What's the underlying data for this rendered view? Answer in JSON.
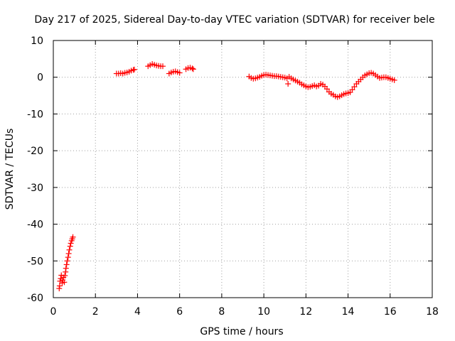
{
  "chart_data": {
    "type": "scatter",
    "title": "Day 217 of 2025, Sidereal Day-to-day VTEC variation (SDTVAR) for receiver bele",
    "xlabel": "GPS time / hours",
    "ylabel": "SDTVAR / TECUs",
    "xlim": [
      0,
      18
    ],
    "ylim": [
      -60,
      10
    ],
    "xticks": [
      "0",
      "2",
      "4",
      "6",
      "8",
      "10",
      "12",
      "14",
      "16",
      "18"
    ],
    "yticks": [
      "10",
      "0",
      "-10",
      "-20",
      "-30",
      "-40",
      "-50",
      "-60"
    ],
    "grid": true,
    "marker": "+",
    "color": "#ff0000",
    "series": [
      {
        "name": "SDTVAR",
        "points": [
          [
            0.28,
            -57.5
          ],
          [
            0.3,
            -56.8
          ],
          [
            0.32,
            -55.5
          ],
          [
            0.35,
            -54.8
          ],
          [
            0.38,
            -53.9
          ],
          [
            0.42,
            -56.0
          ],
          [
            0.45,
            -55.2
          ],
          [
            0.48,
            -54.5
          ],
          [
            0.52,
            -55.8
          ],
          [
            0.55,
            -54.0
          ],
          [
            0.58,
            -53.0
          ],
          [
            0.6,
            -52.0
          ],
          [
            0.63,
            -51.0
          ],
          [
            0.66,
            -50.0
          ],
          [
            0.7,
            -49.0
          ],
          [
            0.73,
            -48.0
          ],
          [
            0.76,
            -47.0
          ],
          [
            0.8,
            -46.0
          ],
          [
            0.83,
            -45.2
          ],
          [
            0.87,
            -44.5
          ],
          [
            0.9,
            -44.0
          ],
          [
            0.93,
            -43.5
          ],
          [
            3.0,
            1.0
          ],
          [
            3.1,
            1.0
          ],
          [
            3.2,
            1.1
          ],
          [
            3.3,
            1.0
          ],
          [
            3.4,
            1.2
          ],
          [
            3.5,
            1.3
          ],
          [
            3.6,
            1.5
          ],
          [
            3.7,
            1.8
          ],
          [
            3.8,
            2.0
          ],
          [
            3.85,
            2.1
          ],
          [
            4.5,
            3.0
          ],
          [
            4.6,
            3.3
          ],
          [
            4.7,
            3.6
          ],
          [
            4.8,
            3.4
          ],
          [
            4.9,
            3.2
          ],
          [
            5.0,
            3.1
          ],
          [
            5.1,
            3.0
          ],
          [
            5.2,
            3.0
          ],
          [
            5.5,
            1.0
          ],
          [
            5.6,
            1.3
          ],
          [
            5.7,
            1.5
          ],
          [
            5.8,
            1.6
          ],
          [
            5.9,
            1.4
          ],
          [
            6.0,
            1.2
          ],
          [
            6.3,
            2.2
          ],
          [
            6.4,
            2.5
          ],
          [
            6.5,
            2.6
          ],
          [
            6.6,
            2.4
          ],
          [
            6.65,
            2.2
          ],
          [
            9.3,
            0.2
          ],
          [
            9.4,
            -0.2
          ],
          [
            9.5,
            -0.4
          ],
          [
            9.6,
            -0.3
          ],
          [
            9.7,
            -0.1
          ],
          [
            9.8,
            0.1
          ],
          [
            9.9,
            0.4
          ],
          [
            10.0,
            0.6
          ],
          [
            10.1,
            0.7
          ],
          [
            10.2,
            0.6
          ],
          [
            10.3,
            0.5
          ],
          [
            10.4,
            0.4
          ],
          [
            10.5,
            0.3
          ],
          [
            10.6,
            0.3
          ],
          [
            10.7,
            0.2
          ],
          [
            10.8,
            0.1
          ],
          [
            10.9,
            0.0
          ],
          [
            11.0,
            -0.1
          ],
          [
            11.1,
            -0.3
          ],
          [
            11.15,
            -1.8
          ],
          [
            11.2,
            0.1
          ],
          [
            11.3,
            -0.3
          ],
          [
            11.4,
            -0.6
          ],
          [
            11.5,
            -0.9
          ],
          [
            11.6,
            -1.2
          ],
          [
            11.7,
            -1.5
          ],
          [
            11.8,
            -1.9
          ],
          [
            11.9,
            -2.2
          ],
          [
            12.0,
            -2.5
          ],
          [
            12.1,
            -2.7
          ],
          [
            12.2,
            -2.6
          ],
          [
            12.3,
            -2.4
          ],
          [
            12.4,
            -2.2
          ],
          [
            12.5,
            -2.5
          ],
          [
            12.6,
            -2.3
          ],
          [
            12.7,
            -1.8
          ],
          [
            12.8,
            -2.0
          ],
          [
            12.9,
            -2.5
          ],
          [
            13.0,
            -3.2
          ],
          [
            13.1,
            -4.0
          ],
          [
            13.2,
            -4.5
          ],
          [
            13.3,
            -4.8
          ],
          [
            13.4,
            -5.2
          ],
          [
            13.5,
            -5.4
          ],
          [
            13.6,
            -5.2
          ],
          [
            13.7,
            -4.9
          ],
          [
            13.8,
            -4.6
          ],
          [
            13.9,
            -4.4
          ],
          [
            14.0,
            -4.3
          ],
          [
            14.1,
            -4.1
          ],
          [
            14.2,
            -3.4
          ],
          [
            14.3,
            -2.6
          ],
          [
            14.4,
            -1.8
          ],
          [
            14.5,
            -1.2
          ],
          [
            14.6,
            -0.6
          ],
          [
            14.7,
            0.0
          ],
          [
            14.8,
            0.5
          ],
          [
            14.9,
            0.8
          ],
          [
            15.0,
            1.1
          ],
          [
            15.1,
            1.2
          ],
          [
            15.2,
            1.0
          ],
          [
            15.3,
            0.6
          ],
          [
            15.4,
            0.2
          ],
          [
            15.5,
            -0.2
          ],
          [
            15.6,
            -0.1
          ],
          [
            15.7,
            0.0
          ],
          [
            15.8,
            0.0
          ],
          [
            15.9,
            -0.2
          ],
          [
            16.0,
            -0.4
          ],
          [
            16.1,
            -0.6
          ],
          [
            16.2,
            -0.8
          ]
        ]
      }
    ]
  }
}
